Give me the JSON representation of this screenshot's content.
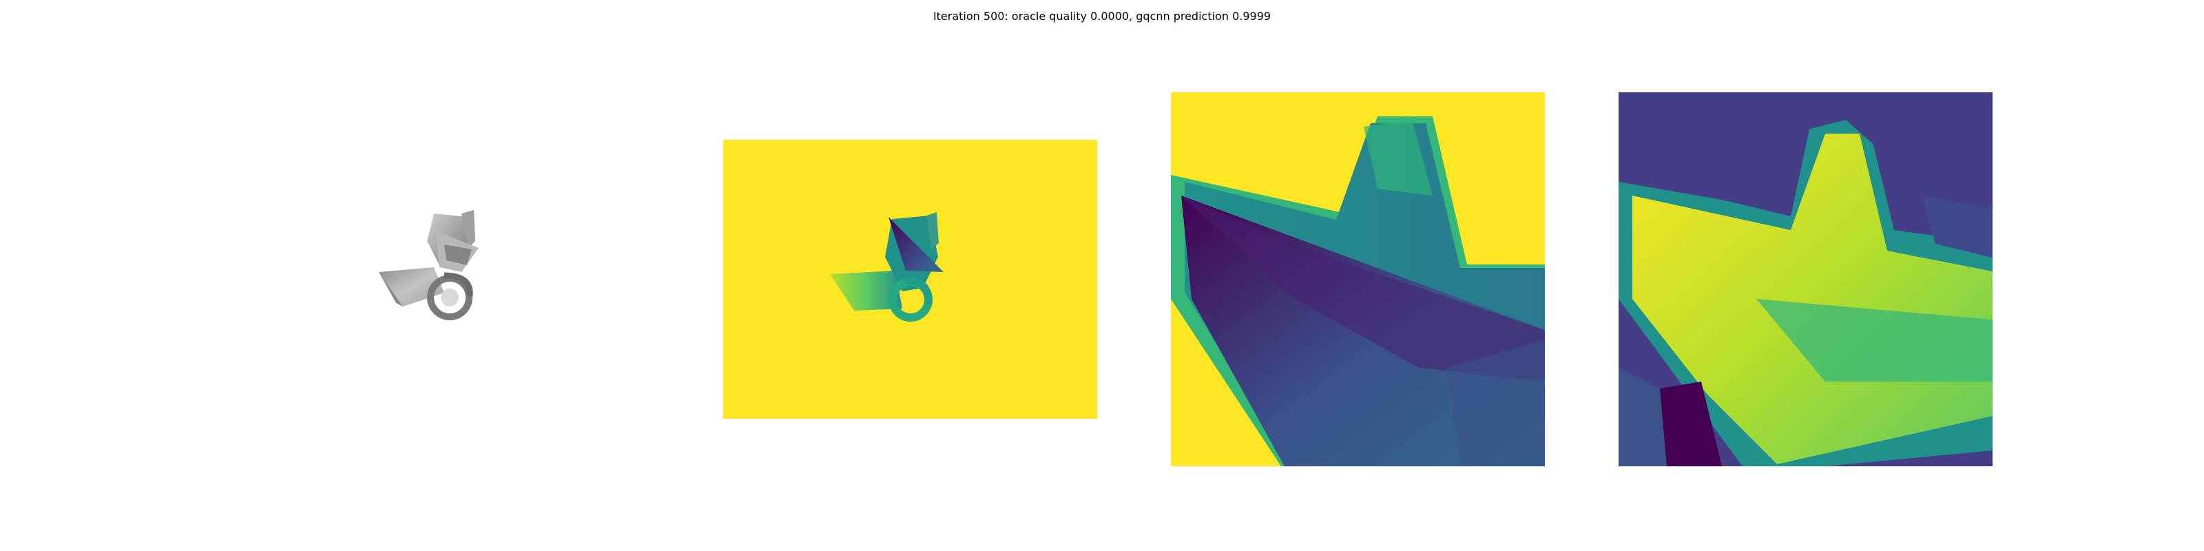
{
  "figure": {
    "title": "Iteration 500: oracle quality 0.0000, gqcnn prediction 0.9999"
  },
  "palette": {
    "background": "#ffffff",
    "viridis_dark": "#440154",
    "viridis_indigo": "#3b528b",
    "viridis_teal": "#21918c",
    "viridis_green": "#5ec962",
    "viridis_yellow": "#fde725",
    "gray_light": "#c8c8c8",
    "gray_mid": "#9a9a9a",
    "gray_dark": "#6e6e6e"
  },
  "panels": [
    {
      "name": "rendered-object",
      "colormap": "gray"
    },
    {
      "name": "depth-image",
      "colormap": "viridis"
    },
    {
      "name": "depth-crop",
      "colormap": "viridis"
    },
    {
      "name": "depth-crop-normalized",
      "colormap": "viridis"
    }
  ]
}
